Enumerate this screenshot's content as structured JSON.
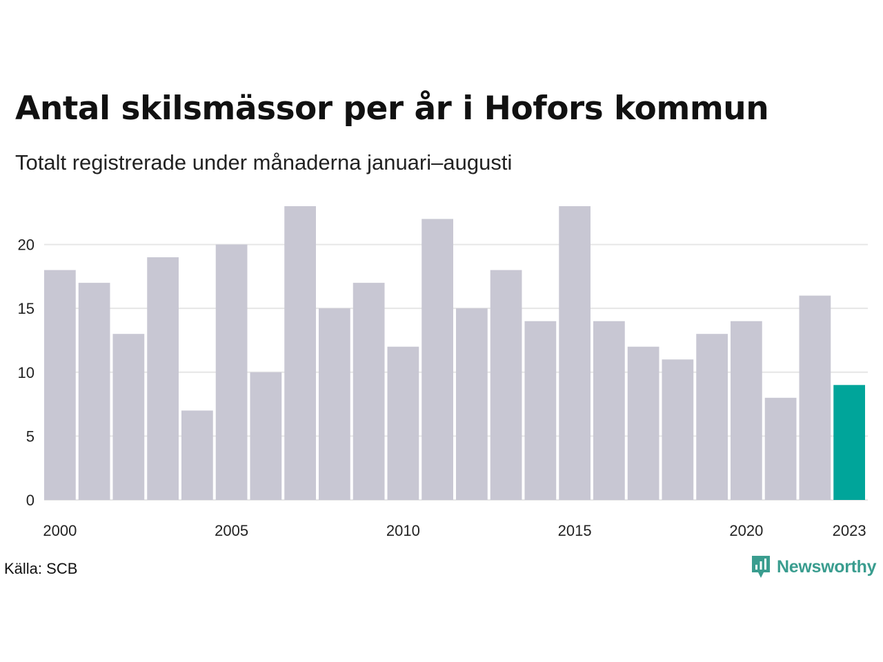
{
  "header": {
    "title": "Antal skilsmässor per år i Hofors kommun",
    "subtitle": "Totalt registrerade under månaderna januari–augusti"
  },
  "footer": {
    "source": "Källa: SCB",
    "brand": "Newsworthy"
  },
  "colors": {
    "bar": "#c8c7d3",
    "highlight": "#00a59a",
    "grid": "#e6e6e6",
    "brand": "#3a9d8f"
  },
  "chart_data": {
    "type": "bar",
    "categories": [
      "2000",
      "2001",
      "2002",
      "2003",
      "2004",
      "2005",
      "2006",
      "2007",
      "2008",
      "2009",
      "2010",
      "2011",
      "2012",
      "2013",
      "2014",
      "2015",
      "2016",
      "2017",
      "2018",
      "2019",
      "2020",
      "2021",
      "2022",
      "2023"
    ],
    "values": [
      18,
      17,
      13,
      19,
      7,
      20,
      10,
      23,
      15,
      17,
      12,
      22,
      15,
      18,
      14,
      23,
      14,
      12,
      11,
      13,
      14,
      8,
      16,
      9
    ],
    "highlight_category": "2023",
    "x_tick_labels": [
      "2000",
      "2005",
      "2010",
      "2015",
      "2020",
      "2023"
    ],
    "y_ticks": [
      0,
      5,
      10,
      15,
      20
    ],
    "ylim": [
      0,
      23
    ],
    "grid": true,
    "title": "Antal skilsmässor per år i Hofors kommun",
    "xlabel": "",
    "ylabel": ""
  }
}
